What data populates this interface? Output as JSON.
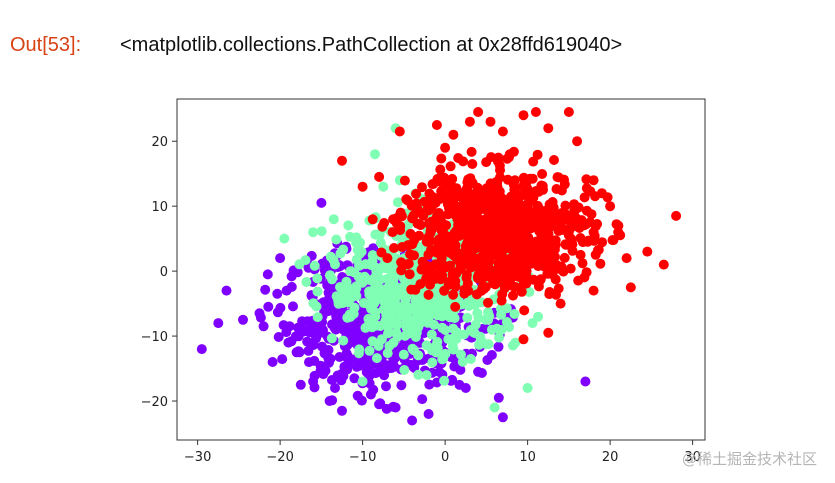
{
  "cell": {
    "prompt": "Out[53]:",
    "output_text": "<matplotlib.collections.PathCollection at 0x28ffd619040>"
  },
  "watermark": "@稀土掘金技术社区",
  "chart_data": {
    "type": "scatter",
    "title": "",
    "xlabel": "",
    "ylabel": "",
    "xlim": [
      -32.5,
      31.5
    ],
    "ylim": [
      -26,
      26.5
    ],
    "xticks": [
      -30,
      -20,
      -10,
      0,
      10,
      20,
      30
    ],
    "yticks": [
      -20,
      -10,
      0,
      10,
      20
    ],
    "grid": false,
    "legend": "none",
    "series": [
      {
        "color": "#8000ff",
        "cluster": {
          "center": [
            -7.5,
            -7.5
          ],
          "sd": [
            6.0,
            5.2
          ],
          "n": 700
        },
        "points": [
          [
            -29.5,
            -12
          ],
          [
            -27.5,
            -8
          ],
          [
            -26.5,
            -3
          ],
          [
            -24.5,
            -7.5
          ],
          [
            -22.5,
            -6.5
          ],
          [
            -22,
            -8.5
          ],
          [
            -21.5,
            -0.5
          ],
          [
            -20,
            2
          ],
          [
            -19,
            -11
          ],
          [
            -18,
            -12.5
          ],
          [
            -17.5,
            -17.5
          ],
          [
            -16.5,
            -14
          ],
          [
            -16,
            -17
          ],
          [
            -15,
            10.5
          ],
          [
            -14,
            -20
          ],
          [
            -12.5,
            -21.5
          ],
          [
            -11,
            -16.5
          ],
          [
            -9,
            -19
          ],
          [
            -8,
            -20.5
          ],
          [
            -6,
            -21
          ],
          [
            -4,
            -23
          ],
          [
            -2,
            -22
          ],
          [
            2.5,
            -18
          ],
          [
            4,
            -15.5
          ],
          [
            6.5,
            -19.5
          ],
          [
            7,
            -22.5
          ],
          [
            17,
            -17
          ]
        ]
      },
      {
        "color": "#80ffb4",
        "cluster": {
          "center": [
            -2.5,
            -2.5
          ],
          "sd": [
            6.0,
            5.5
          ],
          "n": 600
        },
        "points": [
          [
            -19.5,
            5
          ],
          [
            -16,
            6
          ],
          [
            -13.5,
            8
          ],
          [
            -8.5,
            18
          ],
          [
            -7.5,
            13
          ],
          [
            -6,
            22
          ],
          [
            -5.5,
            14
          ],
          [
            -3,
            10
          ],
          [
            -1,
            8
          ],
          [
            6,
            -21
          ],
          [
            8.5,
            -11
          ],
          [
            10,
            -18
          ],
          [
            -10,
            -17
          ]
        ]
      },
      {
        "color": "#ff0000",
        "cluster": {
          "center": [
            6.0,
            6.0
          ],
          "sd": [
            5.8,
            4.8
          ],
          "n": 900
        },
        "points": [
          [
            -12.5,
            17
          ],
          [
            -10,
            13
          ],
          [
            -8,
            14.5
          ],
          [
            -7,
            2
          ],
          [
            -5.5,
            21.5
          ],
          [
            -1,
            22.5
          ],
          [
            0,
            19
          ],
          [
            1,
            21
          ],
          [
            3,
            23
          ],
          [
            4,
            24.5
          ],
          [
            5.5,
            23
          ],
          [
            7,
            21.5
          ],
          [
            9.5,
            24
          ],
          [
            11,
            24.5
          ],
          [
            12.5,
            22
          ],
          [
            15,
            24.5
          ],
          [
            16,
            20
          ],
          [
            18,
            14
          ],
          [
            19,
            12
          ],
          [
            20,
            10
          ],
          [
            21,
            7
          ],
          [
            22,
            2
          ],
          [
            22.5,
            -2.5
          ],
          [
            24.5,
            3
          ],
          [
            26.5,
            1
          ],
          [
            28,
            8.5
          ],
          [
            18,
            -3
          ],
          [
            12.5,
            -9.5
          ],
          [
            9.5,
            -10.5
          ],
          [
            14,
            -5
          ],
          [
            -3,
            -2
          ],
          [
            -4.5,
            4
          ]
        ]
      }
    ]
  }
}
